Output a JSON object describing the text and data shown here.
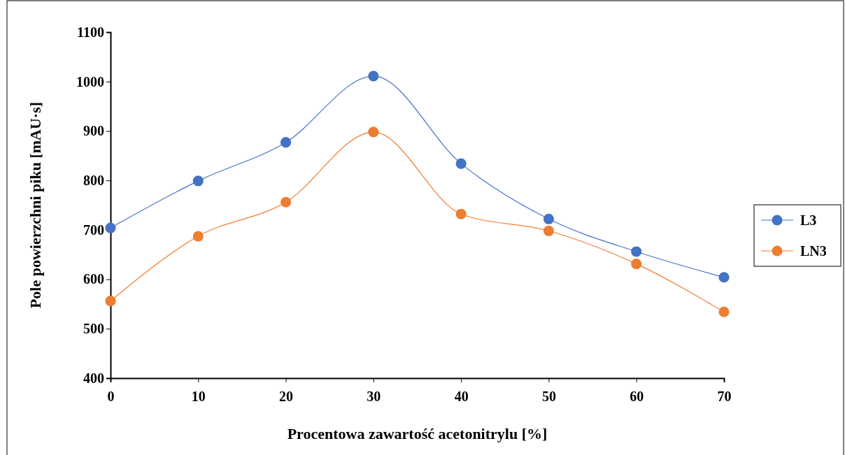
{
  "chart_data": {
    "type": "line",
    "xlabel": "Procentowa zawartość acetonitrylu [%]",
    "ylabel": "Pole powierzchni piku [mAU·s]",
    "x": [
      0,
      10,
      20,
      30,
      40,
      50,
      60,
      70
    ],
    "series": [
      {
        "name": "L3",
        "color": "#4472c4",
        "values": [
          704,
          799,
          877,
          1011,
          834,
          722,
          656,
          604
        ]
      },
      {
        "name": "LN3",
        "color": "#ed7d31",
        "values": [
          556,
          687,
          756,
          898,
          732,
          698,
          631,
          534
        ]
      }
    ],
    "xlim": [
      0,
      70
    ],
    "xticks": [
      0,
      10,
      20,
      30,
      40,
      50,
      60,
      70
    ],
    "ylim": [
      400,
      1100
    ],
    "yticks": [
      400,
      500,
      600,
      700,
      800,
      900,
      1000,
      1100
    ],
    "grid": false,
    "legend": "right",
    "marker": "circle",
    "line_style": "solid"
  }
}
